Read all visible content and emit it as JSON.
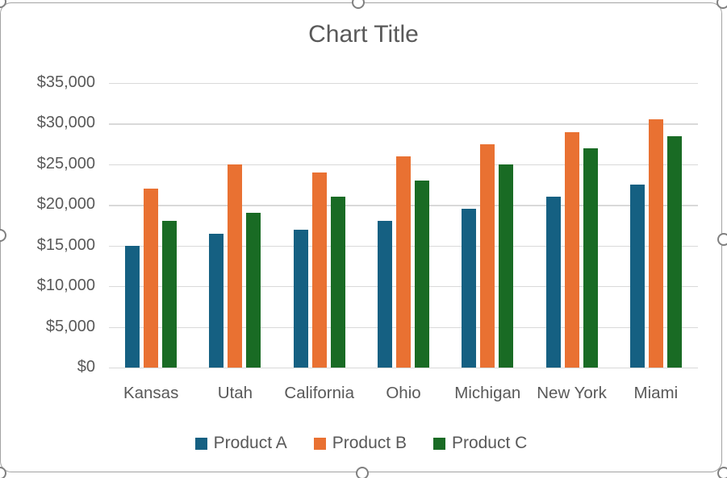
{
  "chart_data": {
    "type": "bar",
    "title": "Chart Title",
    "categories": [
      "Kansas",
      "Utah",
      "California",
      "Ohio",
      "Michigan",
      "New York",
      "Miami"
    ],
    "series": [
      {
        "name": "Product A",
        "color": "#156082",
        "values": [
          15000,
          16500,
          17000,
          18000,
          19500,
          21000,
          22500
        ]
      },
      {
        "name": "Product B",
        "color": "#E97132",
        "values": [
          22000,
          25000,
          24000,
          26000,
          27500,
          29000,
          30500
        ]
      },
      {
        "name": "Product C",
        "color": "#196B24",
        "values": [
          18000,
          19000,
          21000,
          23000,
          25000,
          27000,
          28500
        ]
      }
    ],
    "ylim": [
      0,
      35000
    ],
    "yticks": [
      {
        "value": 0,
        "label": "$0"
      },
      {
        "value": 5000,
        "label": "$5,000"
      },
      {
        "value": 10000,
        "label": "$10,000"
      },
      {
        "value": 15000,
        "label": "$15,000"
      },
      {
        "value": 20000,
        "label": "$20,000"
      },
      {
        "value": 25000,
        "label": "$25,000"
      },
      {
        "value": 30000,
        "label": "$30,000"
      },
      {
        "value": 35000,
        "label": "$35,000"
      }
    ],
    "grid": true,
    "legend_position": "bottom",
    "text_color": "#595959",
    "gridline_color": "#D9D9D9",
    "frame_border_color": "#A3A3A3"
  },
  "selection": {
    "handles": [
      "top-left",
      "top-center",
      "top-right",
      "left-middle",
      "right-middle",
      "bottom-left",
      "bottom-center",
      "bottom-right"
    ]
  }
}
